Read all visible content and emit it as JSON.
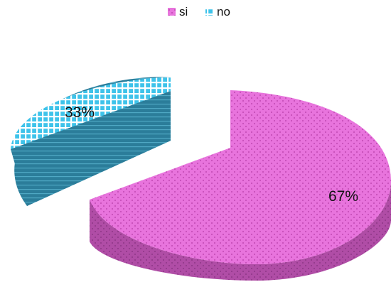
{
  "chart_data": {
    "type": "pie",
    "style": "3d-exploded",
    "title": "",
    "categories": [
      "si",
      "no"
    ],
    "values": [
      67,
      33
    ],
    "data_labels": [
      "67%",
      "33%"
    ],
    "legend": {
      "placement": "top",
      "entries": [
        "si",
        "no"
      ]
    },
    "colors": {
      "si_top": "#e874dd",
      "si_side": "#b04da6",
      "si_dots": "#c64fb9",
      "no_top": "#3ec3ea",
      "no_grid": "#ffffff",
      "no_side": "#2b7d9a"
    }
  }
}
